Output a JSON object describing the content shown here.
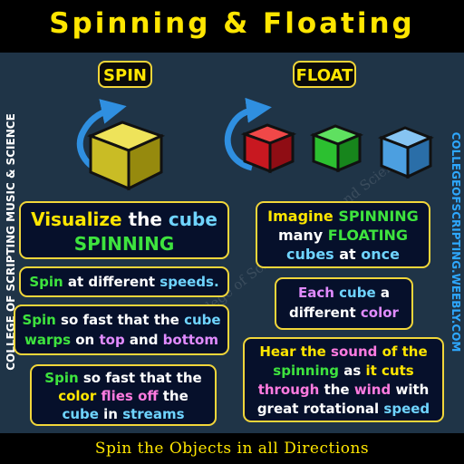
{
  "title": "Spinning & Floating",
  "tags": {
    "spin": "SPIN",
    "float": "FLOAT"
  },
  "side_left": "COLLEGE OF SCRIPTING MUSIC & SCIENCE",
  "side_right": "COLLEGEOFSCRIPTING.WEEBLY.COM",
  "watermark": "College of Scripting Music and Science",
  "footer": "Spin the Objects in all Directions",
  "colors": {
    "title": "#ffe600",
    "card_border": "#f1d63a",
    "card_bg": "#06102b",
    "green": "#3ee33e",
    "cyan": "#6fd4ff",
    "pink": "#ff7be0",
    "purple": "#e18bff",
    "arrow": "#2f8fe0"
  },
  "left_cards": {
    "c1": {
      "a": "Visualize",
      "b": " the ",
      "c": "cube",
      "d": "SPINNING"
    },
    "c2": {
      "a": "Spin",
      "b": " at different ",
      "c": "speeds."
    },
    "c3": {
      "a": "Spin",
      "b": " so fast that the ",
      "c": "cube",
      "d": "warps",
      "e": " on ",
      "f": "top",
      "g": " and ",
      "h": "bottom"
    },
    "c4": {
      "a": "Spin",
      "b": " so fast that the",
      "c": "color",
      "d": "flies off",
      "e": " the",
      "f": "cube",
      "g": " in ",
      "h": "streams"
    }
  },
  "right_cards": {
    "c1": {
      "a": "Imagine ",
      "b": "SPINNING",
      "c": "many ",
      "d": "FLOATING",
      "e": "cubes",
      "f": " at ",
      "g": "once"
    },
    "c2": {
      "a": "Each ",
      "b": "cube",
      "c": " a",
      "d": "different ",
      "e": "color"
    },
    "c3": {
      "a": "Hear the ",
      "b": "sound",
      "c": " of the",
      "d": "spinning",
      "e": " as ",
      "f": "it cuts",
      "g": "through",
      "h": " the ",
      "i": "wind",
      "j": " with",
      "k": "great rotational ",
      "l": "speed"
    }
  },
  "cubes": [
    {
      "name": "yellow",
      "color": "#d8cc2c"
    },
    {
      "name": "red",
      "color": "#d81f26"
    },
    {
      "name": "green",
      "color": "#2cc030"
    },
    {
      "name": "blue",
      "color": "#4c9fe0"
    }
  ]
}
